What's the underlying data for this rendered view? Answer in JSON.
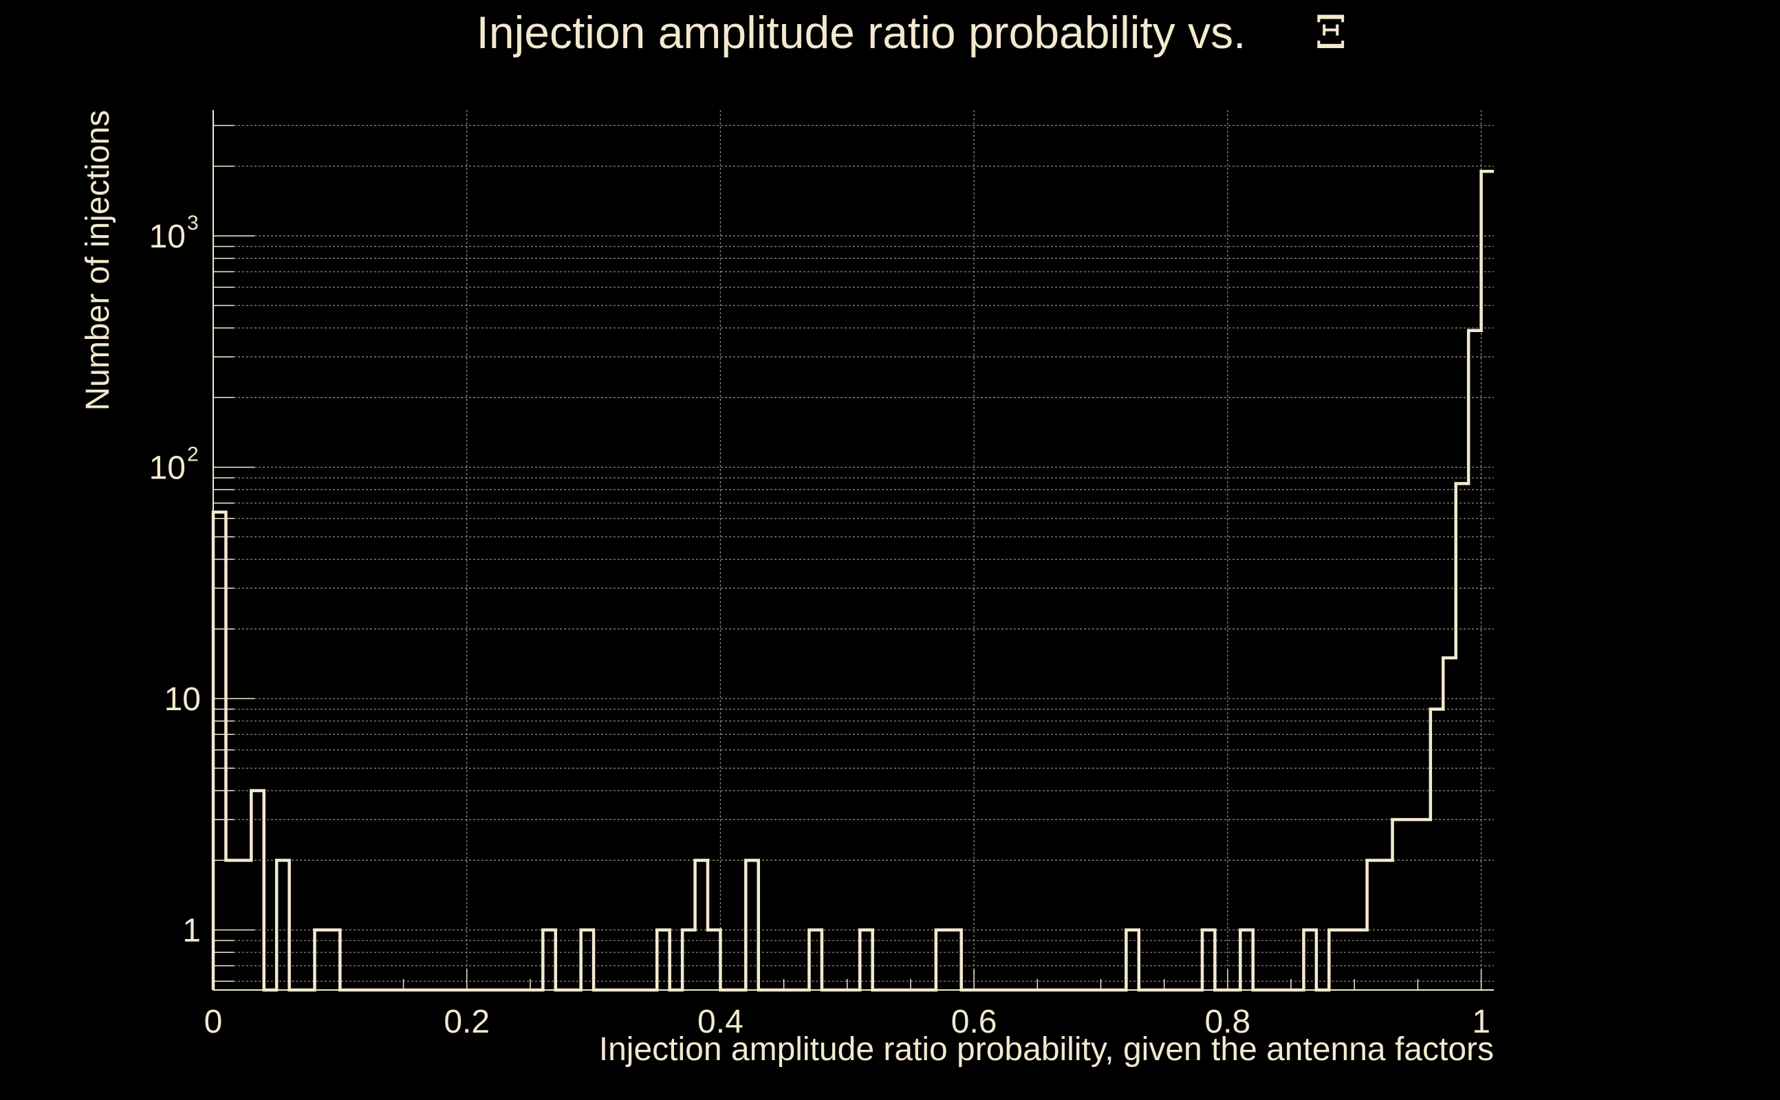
{
  "colors": {
    "background": "#000000",
    "foreground": "#f3e9cf",
    "grid": "#8c8a80"
  },
  "chart_data": {
    "type": "histogram",
    "title": "Injection amplitude ratio probability vs.",
    "title_symbol": "Ξ",
    "xlabel": "Injection amplitude ratio probability, given the antenna factors",
    "ylabel": "Number of injections",
    "xlim": [
      0,
      1.01
    ],
    "ylim": [
      0.55,
      3500
    ],
    "yscale": "log",
    "grid": true,
    "x_ticks": [
      {
        "value": 0,
        "label": "0"
      },
      {
        "value": 0.2,
        "label": "0.2"
      },
      {
        "value": 0.4,
        "label": "0.4"
      },
      {
        "value": 0.6,
        "label": "0.6"
      },
      {
        "value": 0.8,
        "label": "0.8"
      },
      {
        "value": 1,
        "label": "1"
      }
    ],
    "y_ticks": [
      {
        "value": 1,
        "base": "1",
        "exp": ""
      },
      {
        "value": 10,
        "base": "10",
        "exp": ""
      },
      {
        "value": 100,
        "base": "10",
        "exp": "2"
      },
      {
        "value": 1000,
        "base": "10",
        "exp": "3"
      }
    ],
    "bin_width": 0.01,
    "bins": [
      {
        "x0": 0.0,
        "count": 64
      },
      {
        "x0": 0.01,
        "count": 2
      },
      {
        "x0": 0.02,
        "count": 2
      },
      {
        "x0": 0.03,
        "count": 4
      },
      {
        "x0": 0.04,
        "count": 0
      },
      {
        "x0": 0.05,
        "count": 2
      },
      {
        "x0": 0.06,
        "count": 0
      },
      {
        "x0": 0.07,
        "count": 0
      },
      {
        "x0": 0.08,
        "count": 1
      },
      {
        "x0": 0.09,
        "count": 1
      },
      {
        "x0": 0.26,
        "count": 1
      },
      {
        "x0": 0.29,
        "count": 1
      },
      {
        "x0": 0.35,
        "count": 1
      },
      {
        "x0": 0.37,
        "count": 1
      },
      {
        "x0": 0.38,
        "count": 2
      },
      {
        "x0": 0.39,
        "count": 1
      },
      {
        "x0": 0.42,
        "count": 2
      },
      {
        "x0": 0.47,
        "count": 1
      },
      {
        "x0": 0.51,
        "count": 1
      },
      {
        "x0": 0.57,
        "count": 1
      },
      {
        "x0": 0.58,
        "count": 1
      },
      {
        "x0": 0.72,
        "count": 1
      },
      {
        "x0": 0.78,
        "count": 1
      },
      {
        "x0": 0.81,
        "count": 1
      },
      {
        "x0": 0.86,
        "count": 1
      },
      {
        "x0": 0.88,
        "count": 1
      },
      {
        "x0": 0.89,
        "count": 1
      },
      {
        "x0": 0.9,
        "count": 1
      },
      {
        "x0": 0.91,
        "count": 2
      },
      {
        "x0": 0.92,
        "count": 2
      },
      {
        "x0": 0.93,
        "count": 3
      },
      {
        "x0": 0.94,
        "count": 3
      },
      {
        "x0": 0.95,
        "count": 3
      },
      {
        "x0": 0.96,
        "count": 9
      },
      {
        "x0": 0.97,
        "count": 15
      },
      {
        "x0": 0.98,
        "count": 85
      },
      {
        "x0": 0.99,
        "count": 390
      },
      {
        "x0": 1.0,
        "count": 1900
      }
    ]
  }
}
